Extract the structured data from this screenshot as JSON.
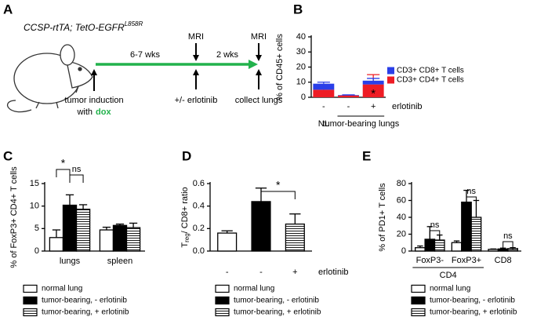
{
  "diagram": {
    "label": "A",
    "genotype": "CCSP-rtTA; TetO-EGFR",
    "genotype_superscript": "L858R",
    "interval_1": "6-7 wks",
    "interval_2": "2 wks",
    "imaging_1": "MRI",
    "imaging_2": "MRI",
    "step_1": "tumor induction",
    "step_1_with": "with",
    "step_1_drug": "dox",
    "step_2": "+/- erlotinib",
    "step_3": "collect lungs"
  },
  "chart_data": [
    {
      "type": "bar",
      "panel": "B",
      "stacked": true,
      "ylabel": "% of CD45+ cells",
      "categories": [
        "-",
        "-",
        "+"
      ],
      "treatment_label": "erlotinib",
      "group_labels": [
        "NL",
        "tumor-bearing lungs"
      ],
      "series": [
        {
          "name": "CD3+ CD4+ T cells",
          "color": "#ee1c24",
          "values": [
            5,
            1.2,
            8.5
          ],
          "errors": [
            1.5,
            0.2,
            6.5
          ]
        },
        {
          "name": "CD3+ CD8+ T cells",
          "color": "#2a3fe8",
          "values": [
            4,
            0.3,
            2.5
          ],
          "errors": [
            1,
            0.1,
            1.5
          ]
        }
      ],
      "annotations": [
        {
          "text": "*"
        }
      ],
      "ylim": [
        0,
        40
      ],
      "yticks": [
        0,
        10,
        20,
        30,
        40
      ]
    },
    {
      "type": "bar",
      "panel": "C",
      "ylabel": "% of FoxP3+ CD4+ T cells",
      "categories": [
        "lungs",
        "spleen"
      ],
      "series": [
        {
          "name": "normal lung",
          "color": "#ffffff",
          "values": [
            3,
            4.7
          ],
          "errors": [
            1.7,
            0.6
          ]
        },
        {
          "name": "tumor-bearing, - erlotinib",
          "color": "#000000",
          "values": [
            10.2,
            5.7
          ],
          "errors": [
            2.3,
            0.3
          ]
        },
        {
          "name": "tumor-bearing, + erlotinib",
          "color": "#ffffff",
          "pattern": "stripes",
          "values": [
            9.3,
            5.2
          ],
          "errors": [
            1,
            1
          ]
        }
      ],
      "annotations": [
        {
          "text": "*"
        },
        {
          "text": "ns"
        }
      ],
      "ylim": [
        0,
        15
      ],
      "yticks": [
        0,
        5,
        10,
        15
      ]
    },
    {
      "type": "bar",
      "panel": "D",
      "ylabel": {
        "main": "T",
        "subscript": "reg",
        "rest": "/ CD8+ ratio"
      },
      "categories": [
        "-",
        "-",
        "+"
      ],
      "treatment_label": "erlotinib",
      "series": [
        {
          "name": "normal lung",
          "color": "#ffffff",
          "values": [
            0.16,
            null,
            null
          ],
          "errors": [
            0.02,
            null,
            null
          ]
        },
        {
          "name": "tumor-bearing, - erlotinib",
          "color": "#000000",
          "values": [
            null,
            0.44,
            null
          ],
          "errors": [
            null,
            0.12,
            null
          ]
        },
        {
          "name": "tumor-bearing, + erlotinib",
          "color": "#ffffff",
          "pattern": "stripes",
          "values": [
            null,
            null,
            0.24
          ],
          "errors": [
            null,
            null,
            0.09
          ]
        }
      ],
      "annotations": [
        {
          "text": "*"
        }
      ],
      "ylim": [
        0,
        0.6
      ],
      "yticks": [
        {
          "value": 0,
          "label": "0.0"
        },
        0.2,
        0.4,
        0.6
      ]
    },
    {
      "type": "bar",
      "panel": "E",
      "ylabel": "% of PD1+ T cells",
      "categories": [
        "FoxP3-",
        "FoxP3+",
        "CD8"
      ],
      "group_labels": [
        "CD4"
      ],
      "series": [
        {
          "name": "normal lung",
          "color": "#ffffff",
          "values": [
            4,
            10,
            2
          ],
          "errors": [
            2,
            2,
            0.5
          ]
        },
        {
          "name": "tumor-bearing, - erlotinib",
          "color": "#000000",
          "values": [
            14,
            58,
            2.5
          ],
          "errors": [
            15,
            14,
            1
          ]
        },
        {
          "name": "tumor-bearing, + erlotinib",
          "color": "#ffffff",
          "pattern": "stripes",
          "values": [
            13,
            40,
            3
          ],
          "errors": [
            6,
            20,
            1
          ]
        }
      ],
      "annotations": [
        {
          "text": "ns"
        },
        {
          "text": "ns"
        },
        {
          "text": "ns"
        }
      ],
      "ylim": [
        0,
        80
      ],
      "yticks": [
        0,
        20,
        40,
        60,
        80
      ]
    }
  ]
}
